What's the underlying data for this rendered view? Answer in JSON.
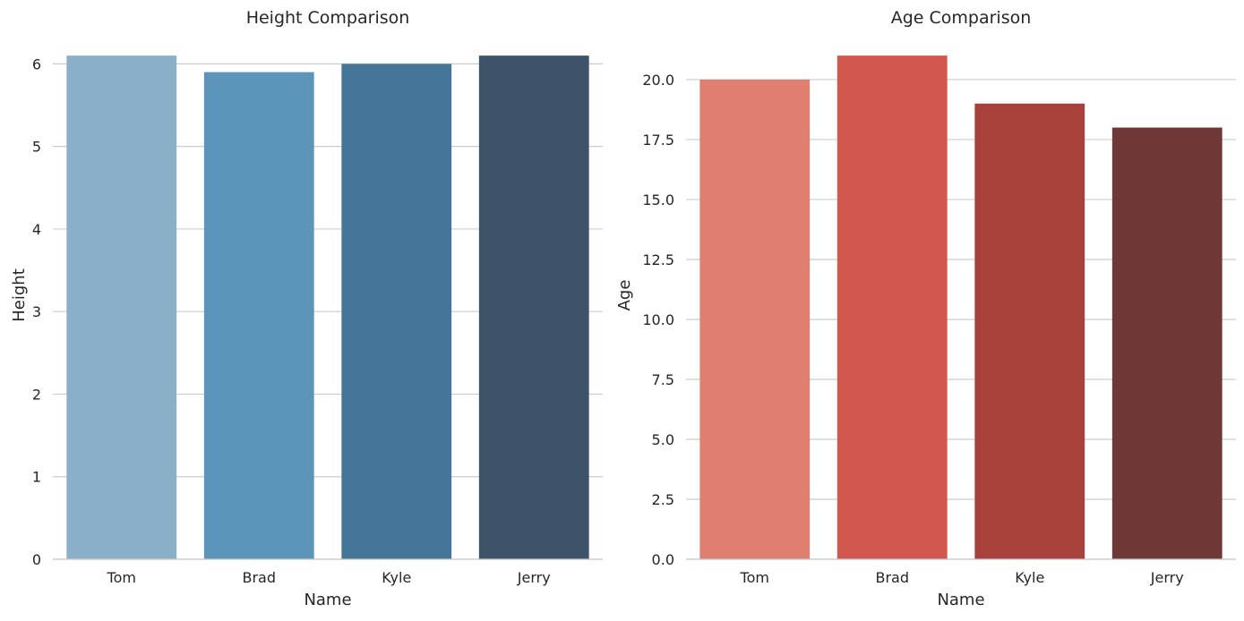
{
  "chart_data": [
    {
      "type": "bar",
      "title": "Height Comparison",
      "xlabel": "Name",
      "ylabel": "Height",
      "categories": [
        "Tom",
        "Brad",
        "Kyle",
        "Jerry"
      ],
      "values": [
        6.1,
        5.9,
        6.0,
        6.1
      ],
      "ylim": [
        0,
        6.405
      ],
      "yticks": [
        0,
        1,
        2,
        3,
        4,
        5,
        6
      ],
      "ytick_labels": [
        "0",
        "1",
        "2",
        "3",
        "4",
        "5",
        "6"
      ],
      "colors": [
        "#8ab0c9",
        "#5d94b9",
        "#45769a",
        "#3d5369"
      ],
      "grid": true
    },
    {
      "type": "bar",
      "title": "Age Comparison",
      "xlabel": "Name",
      "ylabel": "Age",
      "categories": [
        "Tom",
        "Brad",
        "Kyle",
        "Jerry"
      ],
      "values": [
        20,
        21,
        19,
        18
      ],
      "ylim": [
        0,
        22.05
      ],
      "yticks": [
        0,
        2.5,
        5,
        7.5,
        10,
        12.5,
        15,
        17.5,
        20
      ],
      "ytick_labels": [
        "0.0",
        "2.5",
        "5.0",
        "7.5",
        "10.0",
        "12.5",
        "15.0",
        "17.5",
        "20.0"
      ],
      "colors": [
        "#e07f6f",
        "#d2574e",
        "#a8403b",
        "#6e3836"
      ],
      "grid": true
    }
  ]
}
